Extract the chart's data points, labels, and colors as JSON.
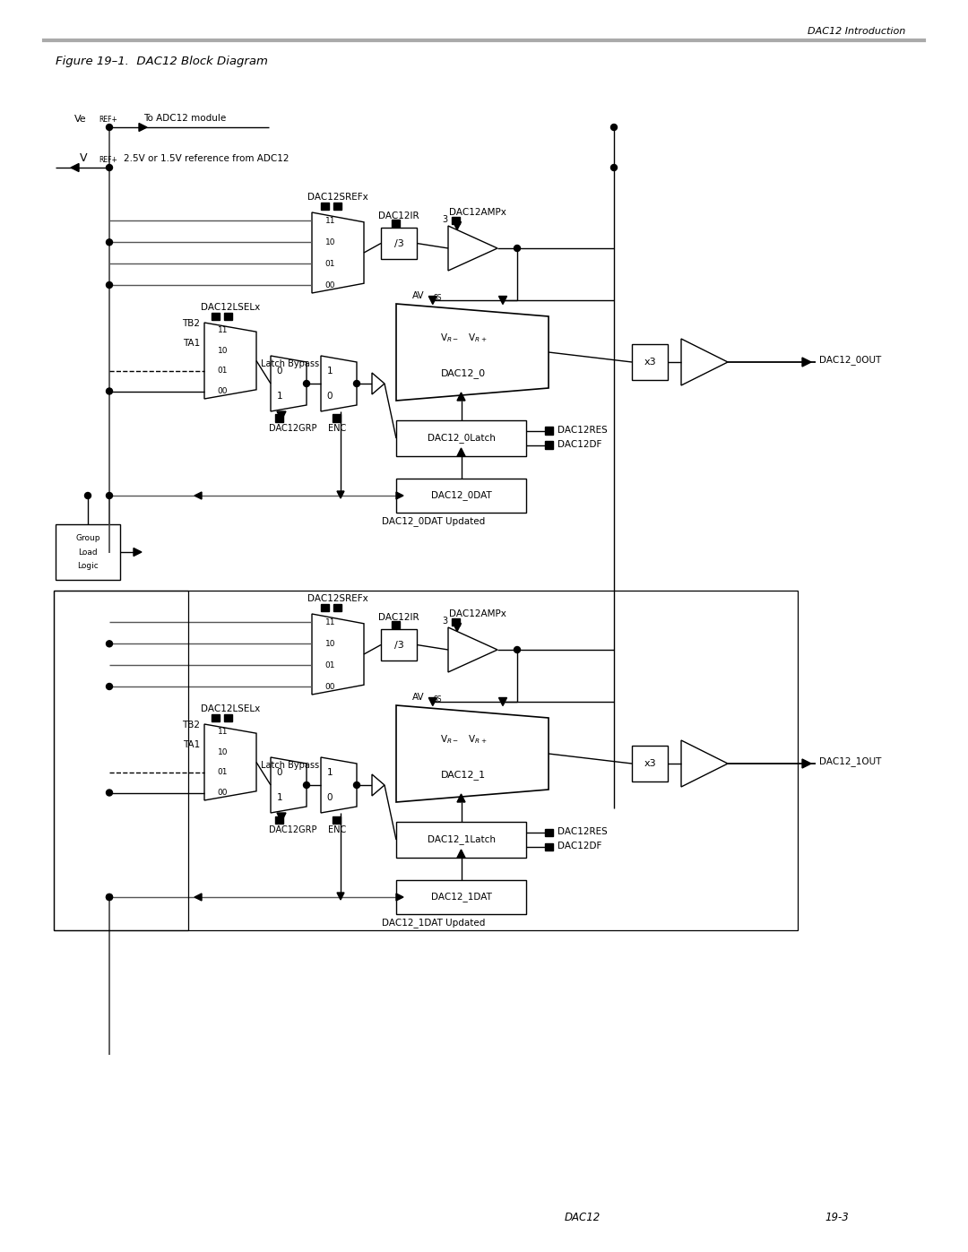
{
  "bg_color": "#ffffff",
  "page_width": 10.8,
  "page_height": 13.97,
  "header_text": "DAC12 Introduction",
  "footer_left": "DAC12",
  "footer_right": "19-3",
  "title": "Figure 19–1.  DAC12 Block Diagram"
}
